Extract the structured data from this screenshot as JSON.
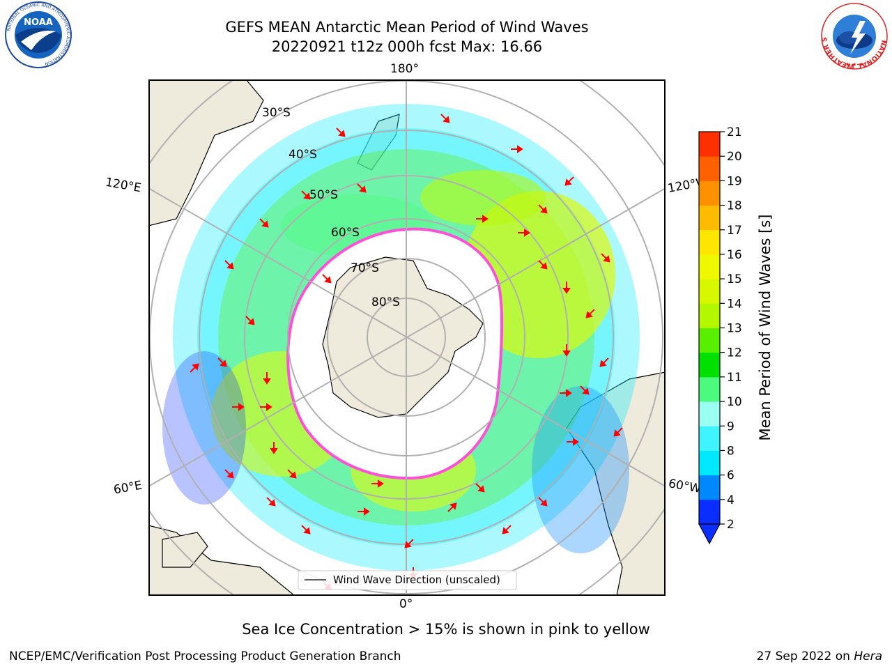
{
  "title": {
    "line1": "GEFS MEAN Antarctic Mean Period of Wind Waves",
    "line2": "20220921 t12z 000h fcst   Max: 16.66"
  },
  "map": {
    "projection": "south-polar-stereographic",
    "meridian_labels": [
      "180°",
      "120°E",
      "120°W",
      "60°E",
      "60°W",
      "0°"
    ],
    "latitude_labels": [
      "30°S",
      "40°S",
      "50°S",
      "60°S",
      "70°S",
      "80°S"
    ],
    "legend_label": "Wind Wave Direction (unscaled)",
    "colors": {
      "land": "#efebdc",
      "ocean_empty": "#ffffff",
      "ice_edge": "#ff4fd8",
      "arrow": "#ff0000",
      "grid": "#b0b0b0"
    }
  },
  "colorbar": {
    "label": "Mean Period of Wind Waves [s]",
    "ticks": [
      "2",
      "4",
      "6",
      "8",
      "9",
      "10",
      "11",
      "12",
      "13",
      "14",
      "15",
      "16",
      "17",
      "18",
      "19",
      "20",
      "21"
    ],
    "colors": [
      "#0a2eff",
      "#0088ff",
      "#00e8ff",
      "#40f4ff",
      "#9bfff4",
      "#4cfb7e",
      "#00e000",
      "#58f000",
      "#b4f800",
      "#d8f800",
      "#f0f800",
      "#ffe600",
      "#ffbb00",
      "#ff9000",
      "#ff6000",
      "#ff3000",
      "#ff0000"
    ],
    "extend": "min"
  },
  "footer": {
    "ice_note": "Sea Ice Concentration > 15% is shown in pink to yellow",
    "credit": "NCEP/EMC/Verification Post Processing Product Generation Branch",
    "date": "27 Sep 2022 on ",
    "host": "Hera"
  },
  "logos": {
    "noaa": {
      "text": "NOAA",
      "ring_text": "NATIONAL OCEANIC AND ATMOSPHERIC ADMINISTRATION",
      "bottom_text": "U.S. DEPARTMENT OF COMMERCE"
    },
    "nws": {
      "ring_text": "NATIONAL WEATHER SERVICE"
    }
  }
}
